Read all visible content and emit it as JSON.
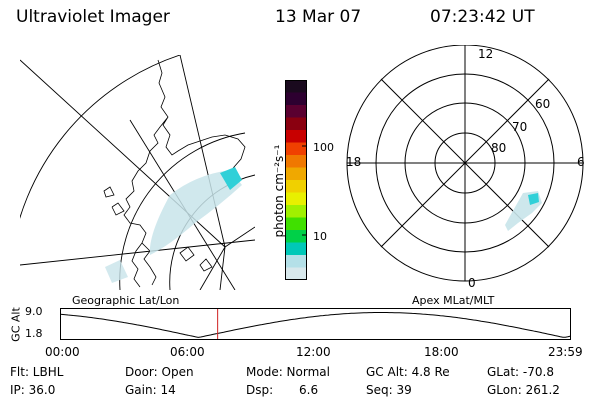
{
  "header": {
    "instrument": "Ultraviolet Imager",
    "date": "13 Mar 07",
    "time": "07:23:42 UT"
  },
  "left_panel": {
    "label": "Geographic Lat/Lon"
  },
  "colorbar": {
    "unit_label": "photon cm⁻²s⁻¹",
    "tick_labels": [
      "100",
      "10"
    ],
    "scale": "log",
    "colors": [
      "#1a0a1e",
      "#2d0030",
      "#5a0030",
      "#8a0010",
      "#c80000",
      "#f04000",
      "#f07800",
      "#f0a800",
      "#f0d000",
      "#e8f000",
      "#a0f000",
      "#40e000",
      "#00d048",
      "#00c8b8",
      "#b4e0e8",
      "#d8e8ec"
    ]
  },
  "right_panel": {
    "label": "Apex MLat/MLT",
    "mlt_labels": {
      "top": "12",
      "left": "18",
      "right": "6",
      "bottom": "0"
    },
    "mlat_labels": [
      "60",
      "70",
      "80"
    ]
  },
  "altitude_strip": {
    "ylabel": "GC Alt",
    "y_ticks": [
      "9.0",
      "1.8"
    ],
    "x_ticks": [
      "00:00",
      "06:00",
      "12:00",
      "18:00",
      "23:59"
    ],
    "current_time_marker_hours": 7.395
  },
  "info": {
    "filter": "Flt: LBHL",
    "door": "Door: Open",
    "mode": "Mode: Normal",
    "gc_alt": "GC Alt: 4.8 Re",
    "glat": "GLat: -70.8",
    "ip": "IP: 36.0",
    "gain": "Gain: 14",
    "dsp_label": "Dsp:",
    "dsp_value": "6.6",
    "seq": "Seq: 39",
    "glon": "GLon: 261.2"
  },
  "colors": {
    "aurora_pale": "#c8e4ea",
    "aurora_cyan": "#30d0d8",
    "marker_red": "#d02020"
  }
}
